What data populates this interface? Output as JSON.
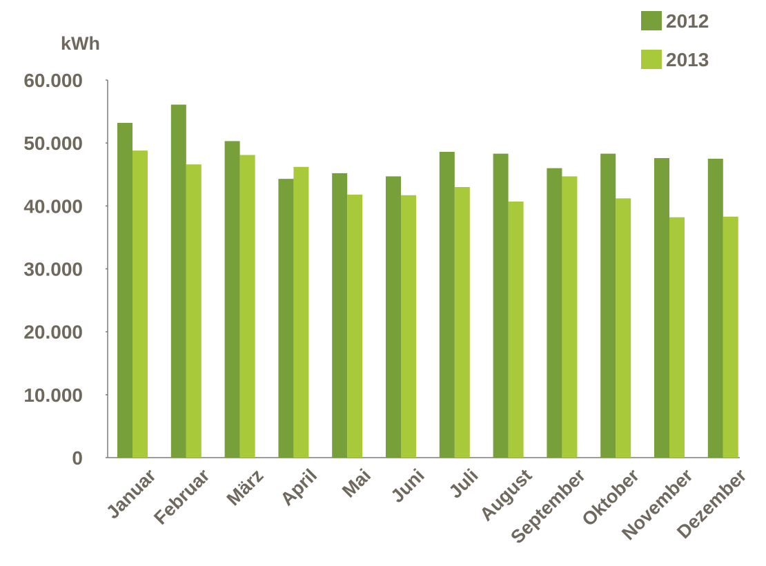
{
  "chart_data": {
    "type": "bar",
    "ylabel": "kWh",
    "ylim": [
      0,
      60000
    ],
    "y_ticks": [
      {
        "value": 0,
        "label": "0"
      },
      {
        "value": 10000,
        "label": "10.000"
      },
      {
        "value": 20000,
        "label": "20.000"
      },
      {
        "value": 30000,
        "label": "30.000"
      },
      {
        "value": 40000,
        "label": "40.000"
      },
      {
        "value": 50000,
        "label": "50.000"
      },
      {
        "value": 60000,
        "label": "60.000"
      }
    ],
    "categories": [
      "Januar",
      "Februar",
      "März",
      "April",
      "Mai",
      "Juni",
      "Juli",
      "August",
      "September",
      "Oktober",
      "November",
      "Dezember"
    ],
    "series": [
      {
        "name": "2012",
        "color": "#779f3a",
        "values": [
          53200,
          56100,
          50300,
          44300,
          45200,
          44700,
          48600,
          48300,
          46000,
          48300,
          47600,
          47500
        ]
      },
      {
        "name": "2013",
        "color": "#a8c93a",
        "values": [
          48800,
          46600,
          48100,
          46200,
          41800,
          41700,
          43000,
          40700,
          44700,
          41200,
          38200,
          38300
        ]
      }
    ],
    "legend_position": "top-right",
    "grid": false
  }
}
